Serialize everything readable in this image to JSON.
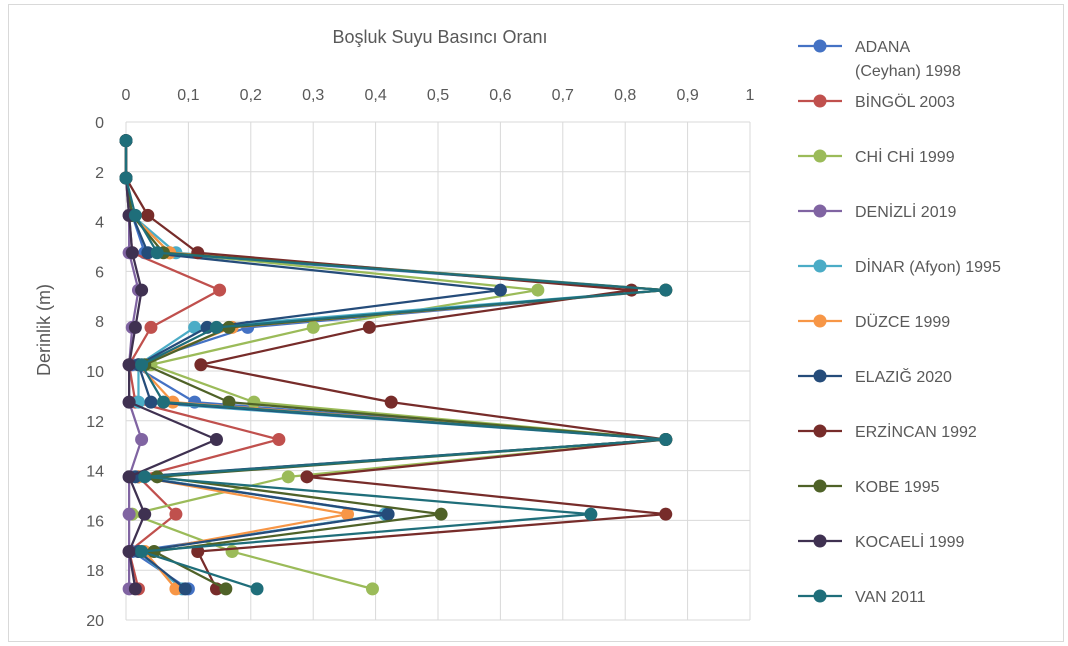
{
  "chart_data": {
    "type": "line",
    "title": "Boşluk Suyu Basıncı Oranı",
    "xlabel": "",
    "ylabel": "Derinlik (m)",
    "xlim": [
      0,
      1
    ],
    "ylim": [
      20,
      0
    ],
    "y_reversed": true,
    "x_axis_position": "top",
    "x_ticks": [
      "0",
      "0,1",
      "0,2",
      "0,3",
      "0,4",
      "0,5",
      "0,6",
      "0,7",
      "0,8",
      "0,9",
      "1"
    ],
    "y_ticks": [
      "0",
      "2",
      "4",
      "6",
      "8",
      "10",
      "12",
      "14",
      "16",
      "18",
      "20"
    ],
    "grid": true,
    "legend_position": "right",
    "series": [
      {
        "name": "ADANA (Ceyhan) 1998",
        "legend_lines": [
          "ADANA",
          "(Ceyhan) 1998"
        ],
        "color": "#4472C4",
        "points": [
          [
            0.0,
            0.75
          ],
          [
            0.0,
            2.25
          ],
          [
            0.01,
            3.75
          ],
          [
            0.03,
            5.25
          ],
          [
            0.865,
            6.75
          ],
          [
            0.195,
            8.25
          ],
          [
            0.01,
            9.75
          ],
          [
            0.11,
            11.25
          ],
          [
            0.865,
            12.75
          ],
          [
            0.02,
            14.25
          ],
          [
            0.42,
            15.75
          ],
          [
            0.01,
            17.25
          ],
          [
            0.1,
            18.75
          ]
        ]
      },
      {
        "name": "BİNGÖL 2003",
        "color": "#C0504D",
        "points": [
          [
            0.0,
            0.75
          ],
          [
            0.0,
            2.25
          ],
          [
            0.005,
            3.75
          ],
          [
            0.01,
            5.25
          ],
          [
            0.15,
            6.75
          ],
          [
            0.04,
            8.25
          ],
          [
            0.005,
            9.75
          ],
          [
            0.015,
            11.25
          ],
          [
            0.245,
            12.75
          ],
          [
            0.02,
            14.25
          ],
          [
            0.08,
            15.75
          ],
          [
            0.005,
            17.25
          ],
          [
            0.02,
            18.75
          ]
        ]
      },
      {
        "name": "CHİ CHİ 1999",
        "color": "#9BBB59",
        "points": [
          [
            0.0,
            0.75
          ],
          [
            0.0,
            2.25
          ],
          [
            0.01,
            3.75
          ],
          [
            0.07,
            5.25
          ],
          [
            0.66,
            6.75
          ],
          [
            0.3,
            8.25
          ],
          [
            0.04,
            9.75
          ],
          [
            0.205,
            11.25
          ],
          [
            0.865,
            12.75
          ],
          [
            0.26,
            14.25
          ],
          [
            0.01,
            15.75
          ],
          [
            0.17,
            17.25
          ],
          [
            0.395,
            18.75
          ]
        ]
      },
      {
        "name": "DENİZLİ 2019",
        "color": "#8064A2",
        "points": [
          [
            0.0,
            0.75
          ],
          [
            0.0,
            2.25
          ],
          [
            0.005,
            3.75
          ],
          [
            0.005,
            5.25
          ],
          [
            0.02,
            6.75
          ],
          [
            0.01,
            8.25
          ],
          [
            0.005,
            9.75
          ],
          [
            0.005,
            11.25
          ],
          [
            0.025,
            12.75
          ],
          [
            0.005,
            14.25
          ],
          [
            0.005,
            15.75
          ],
          [
            0.005,
            17.25
          ],
          [
            0.005,
            18.75
          ]
        ]
      },
      {
        "name": "DİNAR (Afyon) 1995",
        "color": "#4BACC6",
        "points": [
          [
            0.0,
            0.75
          ],
          [
            0.0,
            2.25
          ],
          [
            0.01,
            3.75
          ],
          [
            0.08,
            5.25
          ],
          [
            0.865,
            6.75
          ],
          [
            0.11,
            8.25
          ],
          [
            0.02,
            9.75
          ],
          [
            0.02,
            11.25
          ],
          [
            0.865,
            12.75
          ],
          [
            0.02,
            14.25
          ],
          [
            0.415,
            15.75
          ],
          [
            0.02,
            17.25
          ],
          [
            0.09,
            18.75
          ]
        ]
      },
      {
        "name": "DÜZCE 1999",
        "color": "#F79646",
        "points": [
          [
            0.0,
            0.75
          ],
          [
            0.0,
            2.25
          ],
          [
            0.01,
            3.75
          ],
          [
            0.07,
            5.25
          ],
          [
            0.865,
            6.75
          ],
          [
            0.17,
            8.25
          ],
          [
            0.02,
            9.75
          ],
          [
            0.075,
            11.25
          ],
          [
            0.865,
            12.75
          ],
          [
            0.02,
            14.25
          ],
          [
            0.355,
            15.75
          ],
          [
            0.03,
            17.25
          ],
          [
            0.08,
            18.75
          ]
        ]
      },
      {
        "name": "ELAZIĞ 2020",
        "color": "#254C7A",
        "points": [
          [
            0.0,
            0.75
          ],
          [
            0.0,
            2.25
          ],
          [
            0.01,
            3.75
          ],
          [
            0.035,
            5.25
          ],
          [
            0.6,
            6.75
          ],
          [
            0.13,
            8.25
          ],
          [
            0.02,
            9.75
          ],
          [
            0.04,
            11.25
          ],
          [
            0.865,
            12.75
          ],
          [
            0.015,
            14.25
          ],
          [
            0.42,
            15.75
          ],
          [
            0.02,
            17.25
          ],
          [
            0.095,
            18.75
          ]
        ]
      },
      {
        "name": "ERZİNCAN 1992",
        "color": "#772C2A",
        "points": [
          [
            0.0,
            0.75
          ],
          [
            0.0,
            2.25
          ],
          [
            0.035,
            3.75
          ],
          [
            0.115,
            5.25
          ],
          [
            0.81,
            6.75
          ],
          [
            0.39,
            8.25
          ],
          [
            0.12,
            9.75
          ],
          [
            0.425,
            11.25
          ],
          [
            0.865,
            12.75
          ],
          [
            0.29,
            14.25
          ],
          [
            0.865,
            15.75
          ],
          [
            0.115,
            17.25
          ],
          [
            0.145,
            18.75
          ]
        ]
      },
      {
        "name": "KOBE 1995",
        "color": "#4F6228",
        "points": [
          [
            0.0,
            0.75
          ],
          [
            0.0,
            2.25
          ],
          [
            0.01,
            3.75
          ],
          [
            0.06,
            5.25
          ],
          [
            0.865,
            6.75
          ],
          [
            0.165,
            8.25
          ],
          [
            0.03,
            9.75
          ],
          [
            0.165,
            11.25
          ],
          [
            0.865,
            12.75
          ],
          [
            0.05,
            14.25
          ],
          [
            0.505,
            15.75
          ],
          [
            0.045,
            17.25
          ],
          [
            0.16,
            18.75
          ]
        ]
      },
      {
        "name": "KOCAELİ 1999",
        "color": "#3F3151",
        "points": [
          [
            0.0,
            0.75
          ],
          [
            0.0,
            2.25
          ],
          [
            0.005,
            3.75
          ],
          [
            0.01,
            5.25
          ],
          [
            0.025,
            6.75
          ],
          [
            0.015,
            8.25
          ],
          [
            0.005,
            9.75
          ],
          [
            0.005,
            11.25
          ],
          [
            0.145,
            12.75
          ],
          [
            0.005,
            14.25
          ],
          [
            0.03,
            15.75
          ],
          [
            0.005,
            17.25
          ],
          [
            0.015,
            18.75
          ]
        ]
      },
      {
        "name": "VAN 2011",
        "color": "#1F6E7A",
        "points": [
          [
            0.0,
            0.75
          ],
          [
            0.0,
            2.25
          ],
          [
            0.015,
            3.75
          ],
          [
            0.05,
            5.25
          ],
          [
            0.865,
            6.75
          ],
          [
            0.145,
            8.25
          ],
          [
            0.025,
            9.75
          ],
          [
            0.06,
            11.25
          ],
          [
            0.865,
            12.75
          ],
          [
            0.03,
            14.25
          ],
          [
            0.745,
            15.75
          ],
          [
            0.025,
            17.25
          ],
          [
            0.21,
            18.75
          ]
        ]
      }
    ]
  }
}
